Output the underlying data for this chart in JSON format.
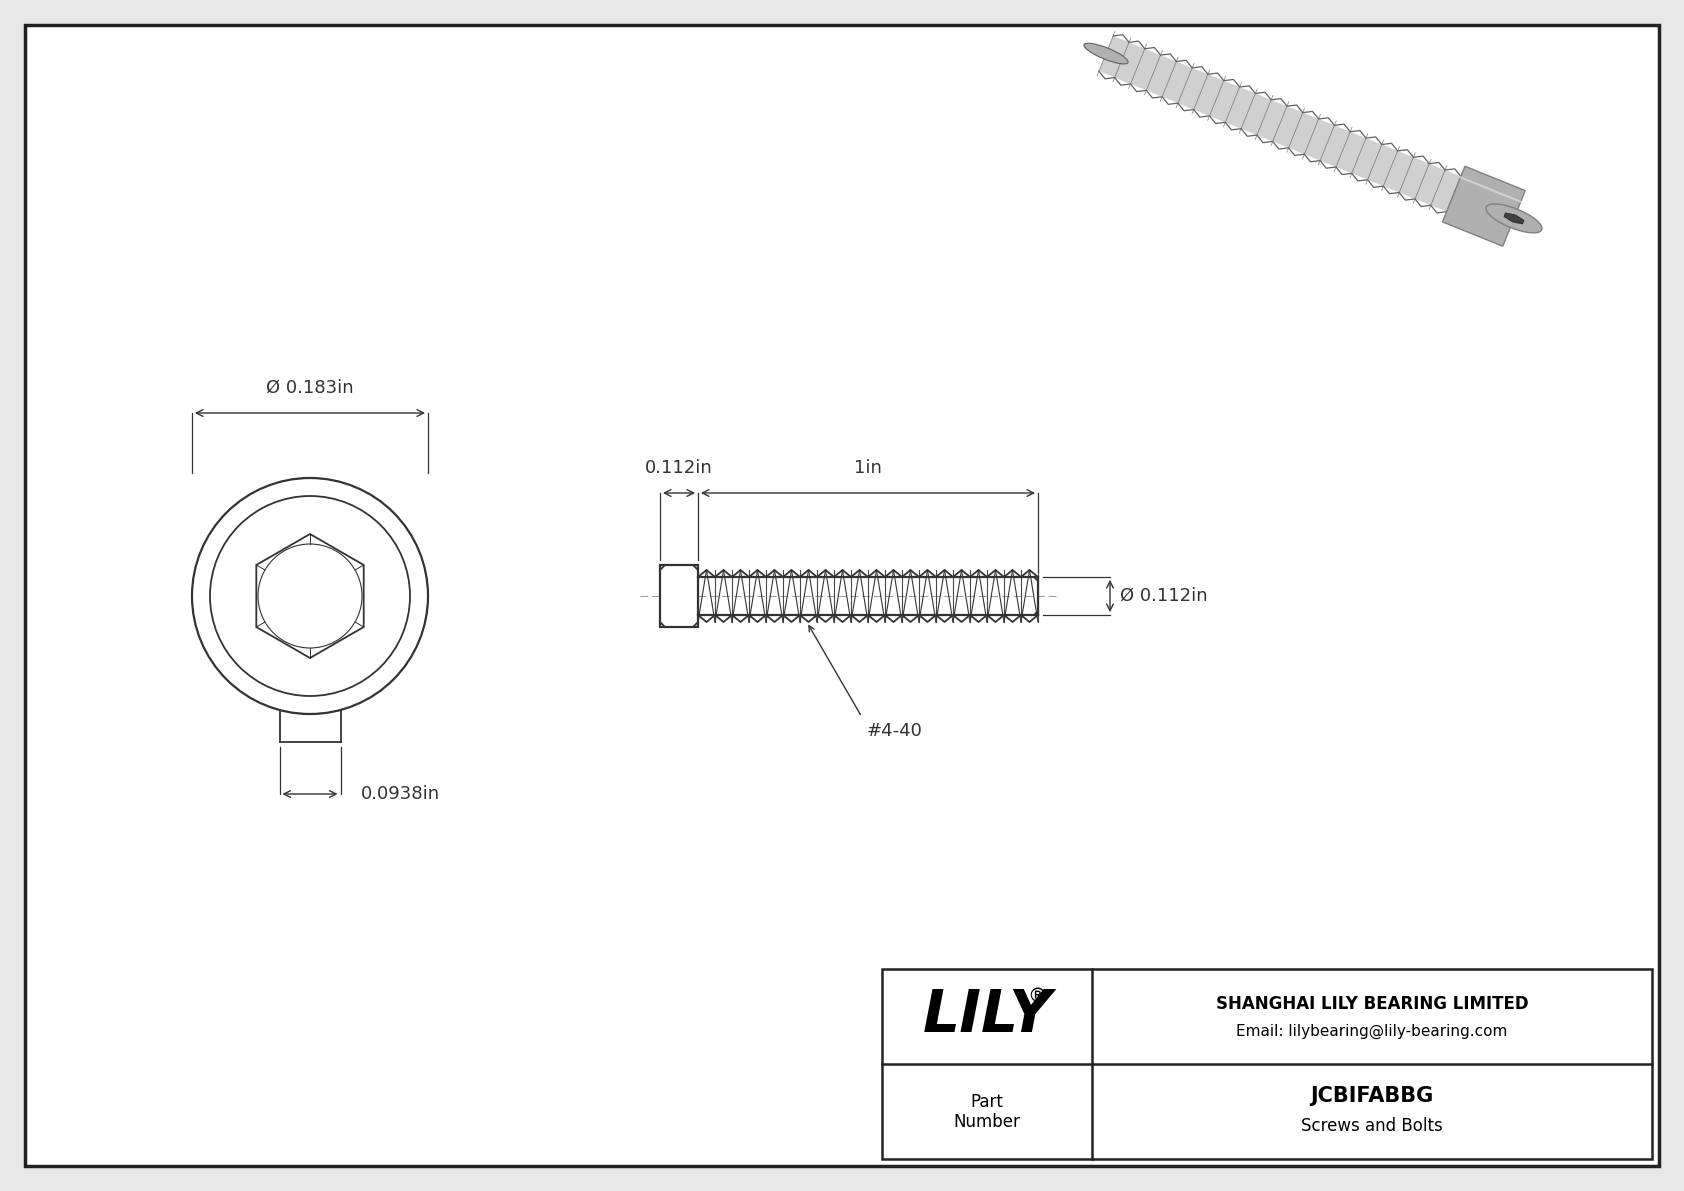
{
  "bg_color": "#e8e8e8",
  "drawing_bg": "#ffffff",
  "border_color": "#222222",
  "line_color": "#333333",
  "dim_color": "#333333",
  "title_company": "SHANGHAI LILY BEARING LIMITED",
  "title_email": "Email: lilybearing@lily-bearing.com",
  "part_number": "JCBIFABBG",
  "part_category": "Screws and Bolts",
  "part_label": "Part\nNumber",
  "lily_text": "LILY",
  "dim_diameter_head": "Ø 0.183in",
  "dim_socket_width": "0.0938in",
  "dim_head_length": "0.112in",
  "dim_thread_length": "1in",
  "dim_thread_diameter": "Ø 0.112in",
  "thread_label": "#4-40",
  "gray_light": "#d0d0d0",
  "gray_mid": "#b0b0b0",
  "gray_dark": "#808080",
  "gray_darker": "#606060"
}
